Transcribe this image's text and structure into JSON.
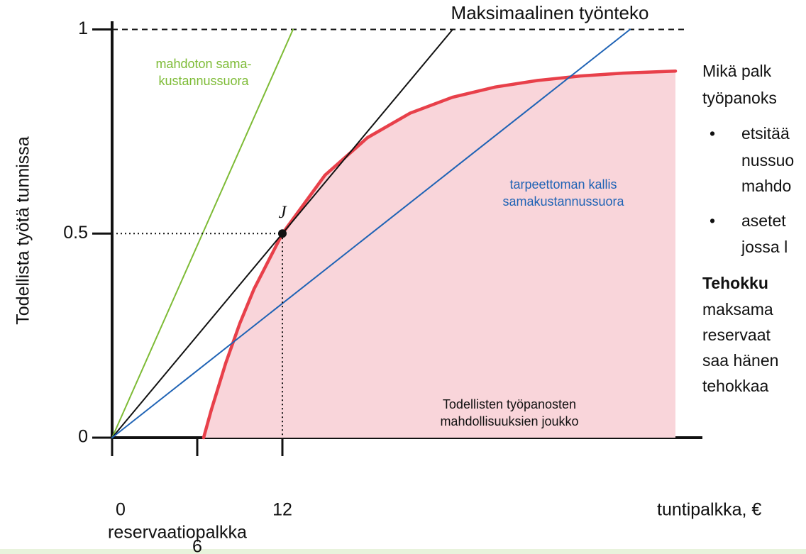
{
  "chart_data": {
    "type": "line",
    "title": "Maksimaalinen työnteko",
    "ylabel": "Todellista työtä tunnissa",
    "xlabel": "tuntipalkka, €",
    "xsublabel": "reservaatiopalkka",
    "xlim": [
      0,
      41.6
    ],
    "ylim": [
      0,
      1.02
    ],
    "xticks": [
      0,
      6,
      12
    ],
    "yticks": [
      0,
      0.5,
      1
    ],
    "series": [
      {
        "color": "#e8404a",
        "fill": "#f9d5da",
        "label": [
          "Todellisten työpanosten",
          "mahdollisuuksien joukko"
        ],
        "x": [
          6.45,
          7,
          8,
          9,
          10,
          12,
          15,
          18,
          21,
          24,
          27,
          30,
          33,
          36,
          39.7
        ],
        "values": [
          0,
          0.069,
          0.182,
          0.28,
          0.364,
          0.5,
          0.643,
          0.735,
          0.795,
          0.834,
          0.859,
          0.875,
          0.886,
          0.893,
          0.898
        ]
      },
      {
        "color": "#7dbb35",
        "label": [
          "mahdoton sama-",
          "kustannussuora"
        ],
        "x": [
          0,
          12.75
        ],
        "values": [
          0,
          1
        ]
      },
      {
        "color": "#111111",
        "x": [
          0,
          24
        ],
        "values": [
          0,
          1
        ]
      },
      {
        "color": "#1f63b5",
        "label": [
          "tarpeettoman kallis",
          "samakustannussuora"
        ],
        "x": [
          0,
          36.5
        ],
        "values": [
          0,
          1
        ]
      }
    ],
    "point": {
      "label": "J",
      "x": 12,
      "y": 0.5
    },
    "side_text": {
      "intro": [
        "Mikä palk",
        "työpanoks"
      ],
      "bullets": [
        [
          "etsitää",
          "nussuo",
          "mahdo"
        ],
        [
          "asetet",
          "jossa l"
        ]
      ],
      "bold": "Tehokku",
      "body": [
        "maksama",
        "reservaat",
        "saa hänen",
        "tehokkaa"
      ]
    }
  }
}
